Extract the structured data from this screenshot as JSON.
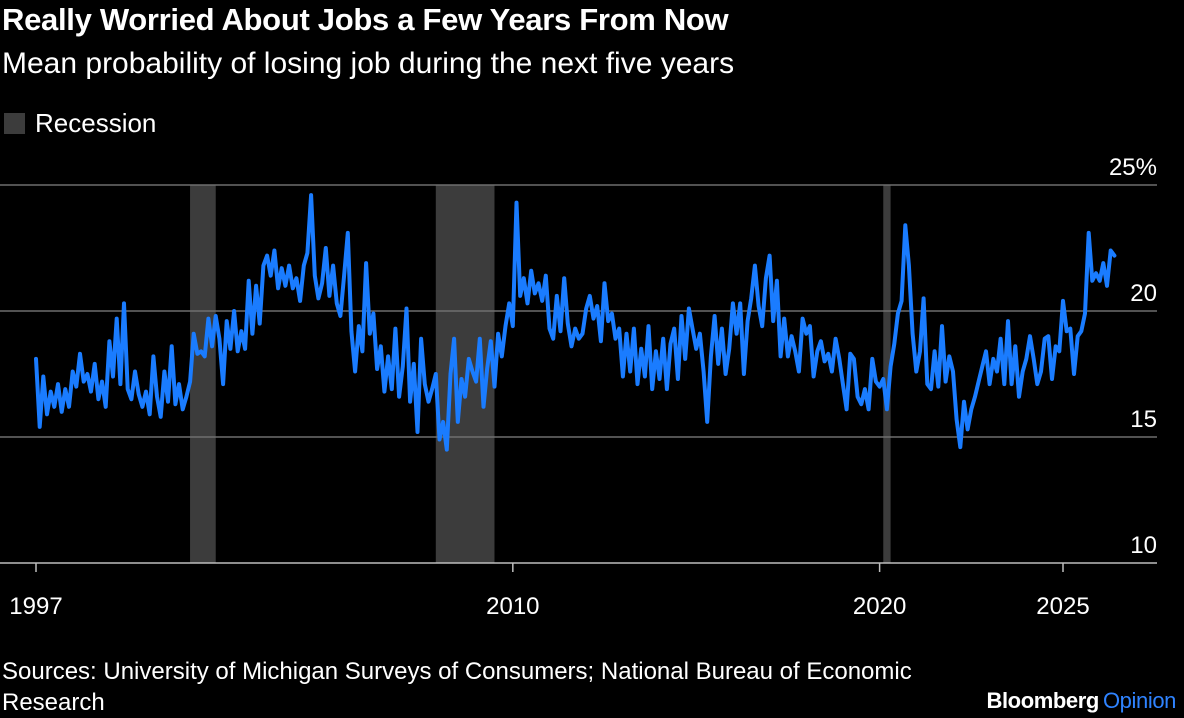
{
  "header": {
    "title": "Really Worried About Jobs a Few Years From Now",
    "subtitle": "Mean probability of losing job during the next five years"
  },
  "legend": {
    "recession_label": "Recession"
  },
  "footer": {
    "source": "Sources: University of Michigan Surveys of Consumers; National Bureau of Economic Research",
    "brand_main": "Bloomberg",
    "brand_sub": "Opinion"
  },
  "colors": {
    "background": "#000000",
    "line": "#1a7cff",
    "recession": "#3c3c3c",
    "gridline": "#6e6e6e",
    "text": "#ffffff",
    "brand_accent": "#2f83ff"
  },
  "chart_data": {
    "type": "line",
    "title": "Really Worried About Jobs a Few Years From Now",
    "subtitle": "Mean probability of losing job during the next five years",
    "xlabel": "",
    "ylabel": "",
    "xlim": [
      1997,
      2026.5
    ],
    "ylim": [
      10,
      25
    ],
    "x_ticks": [
      1997,
      2010,
      2020,
      2025
    ],
    "x_tick_labels": [
      "1997",
      "2010",
      "2020",
      "2025"
    ],
    "y_ticks": [
      10,
      15,
      20,
      25
    ],
    "y_tick_labels": [
      "10",
      "15",
      "20",
      "25%"
    ],
    "grid": "horizontal",
    "legend_position": "top-left",
    "recessions": [
      {
        "start": 2001.2,
        "end": 2001.9
      },
      {
        "start": 2007.9,
        "end": 2009.5
      },
      {
        "start": 2020.1,
        "end": 2020.3
      }
    ],
    "series": [
      {
        "values": [
          [
            1997.0,
            18.1
          ],
          [
            1997.1,
            15.4
          ],
          [
            1997.2,
            17.4
          ],
          [
            1997.3,
            15.9
          ],
          [
            1997.4,
            16.8
          ],
          [
            1997.5,
            16.2
          ],
          [
            1997.6,
            17.1
          ],
          [
            1997.7,
            16.0
          ],
          [
            1997.8,
            16.9
          ],
          [
            1997.9,
            16.2
          ],
          [
            1998.0,
            17.6
          ],
          [
            1998.1,
            17.0
          ],
          [
            1998.2,
            18.3
          ],
          [
            1998.3,
            17.2
          ],
          [
            1998.4,
            17.5
          ],
          [
            1998.5,
            16.8
          ],
          [
            1998.6,
            17.9
          ],
          [
            1998.7,
            16.5
          ],
          [
            1998.8,
            17.2
          ],
          [
            1998.9,
            16.2
          ],
          [
            1999.0,
            18.8
          ],
          [
            1999.1,
            17.4
          ],
          [
            1999.2,
            19.7
          ],
          [
            1999.3,
            17.1
          ],
          [
            1999.4,
            20.3
          ],
          [
            1999.5,
            16.9
          ],
          [
            1999.6,
            16.5
          ],
          [
            1999.7,
            17.6
          ],
          [
            1999.8,
            16.7
          ],
          [
            1999.9,
            16.2
          ],
          [
            2000.0,
            16.8
          ],
          [
            2000.1,
            15.9
          ],
          [
            2000.2,
            18.2
          ],
          [
            2000.3,
            16.6
          ],
          [
            2000.4,
            15.8
          ],
          [
            2000.5,
            17.6
          ],
          [
            2000.6,
            16.4
          ],
          [
            2000.7,
            18.6
          ],
          [
            2000.8,
            16.3
          ],
          [
            2000.9,
            17.1
          ],
          [
            2001.0,
            16.1
          ],
          [
            2001.1,
            16.6
          ],
          [
            2001.2,
            17.2
          ],
          [
            2001.3,
            19.1
          ],
          [
            2001.4,
            18.3
          ],
          [
            2001.5,
            18.4
          ],
          [
            2001.6,
            18.2
          ],
          [
            2001.7,
            19.7
          ],
          [
            2001.8,
            18.6
          ],
          [
            2001.9,
            19.8
          ],
          [
            2002.0,
            18.9
          ],
          [
            2002.1,
            17.1
          ],
          [
            2002.2,
            19.6
          ],
          [
            2002.3,
            18.5
          ],
          [
            2002.4,
            20.0
          ],
          [
            2002.5,
            18.4
          ],
          [
            2002.6,
            19.2
          ],
          [
            2002.7,
            18.5
          ],
          [
            2002.8,
            21.2
          ],
          [
            2002.9,
            19.1
          ],
          [
            2003.0,
            21.0
          ],
          [
            2003.1,
            19.5
          ],
          [
            2003.2,
            21.8
          ],
          [
            2003.3,
            22.2
          ],
          [
            2003.4,
            21.4
          ],
          [
            2003.5,
            22.4
          ],
          [
            2003.6,
            20.9
          ],
          [
            2003.7,
            21.7
          ],
          [
            2003.8,
            21.0
          ],
          [
            2003.9,
            21.8
          ],
          [
            2004.0,
            20.9
          ],
          [
            2004.1,
            21.3
          ],
          [
            2004.2,
            20.4
          ],
          [
            2004.3,
            21.8
          ],
          [
            2004.4,
            22.3
          ],
          [
            2004.5,
            24.6
          ],
          [
            2004.6,
            21.4
          ],
          [
            2004.7,
            20.5
          ],
          [
            2004.8,
            21.1
          ],
          [
            2004.9,
            22.5
          ],
          [
            2005.0,
            20.6
          ],
          [
            2005.1,
            21.8
          ],
          [
            2005.2,
            20.3
          ],
          [
            2005.3,
            19.8
          ],
          [
            2005.4,
            21.4
          ],
          [
            2005.5,
            23.1
          ],
          [
            2005.6,
            19.2
          ],
          [
            2005.7,
            17.6
          ],
          [
            2005.8,
            19.4
          ],
          [
            2005.9,
            18.4
          ],
          [
            2006.0,
            21.9
          ],
          [
            2006.1,
            19.1
          ],
          [
            2006.2,
            19.9
          ],
          [
            2006.3,
            17.7
          ],
          [
            2006.4,
            18.6
          ],
          [
            2006.5,
            16.8
          ],
          [
            2006.6,
            18.2
          ],
          [
            2006.7,
            16.9
          ],
          [
            2006.8,
            19.3
          ],
          [
            2006.9,
            16.6
          ],
          [
            2007.0,
            17.8
          ],
          [
            2007.1,
            20.1
          ],
          [
            2007.2,
            16.4
          ],
          [
            2007.3,
            17.9
          ],
          [
            2007.4,
            15.2
          ],
          [
            2007.5,
            18.9
          ],
          [
            2007.6,
            17.1
          ],
          [
            2007.7,
            16.4
          ],
          [
            2007.8,
            16.9
          ],
          [
            2007.9,
            17.5
          ],
          [
            2008.0,
            14.9
          ],
          [
            2008.1,
            15.6
          ],
          [
            2008.2,
            14.5
          ],
          [
            2008.3,
            17.5
          ],
          [
            2008.4,
            18.9
          ],
          [
            2008.5,
            15.6
          ],
          [
            2008.6,
            17.3
          ],
          [
            2008.7,
            16.6
          ],
          [
            2008.8,
            18.1
          ],
          [
            2008.9,
            17.6
          ],
          [
            2009.0,
            17.2
          ],
          [
            2009.1,
            18.9
          ],
          [
            2009.2,
            16.2
          ],
          [
            2009.3,
            17.7
          ],
          [
            2009.4,
            18.8
          ],
          [
            2009.5,
            17.0
          ],
          [
            2009.6,
            19.1
          ],
          [
            2009.7,
            18.2
          ],
          [
            2009.8,
            19.4
          ],
          [
            2009.9,
            20.3
          ],
          [
            2010.0,
            19.4
          ],
          [
            2010.1,
            24.3
          ],
          [
            2010.2,
            20.6
          ],
          [
            2010.3,
            21.3
          ],
          [
            2010.4,
            20.3
          ],
          [
            2010.5,
            21.6
          ],
          [
            2010.6,
            20.7
          ],
          [
            2010.7,
            21.1
          ],
          [
            2010.8,
            20.4
          ],
          [
            2010.9,
            21.4
          ],
          [
            2011.0,
            19.3
          ],
          [
            2011.1,
            18.9
          ],
          [
            2011.2,
            20.6
          ],
          [
            2011.3,
            19.2
          ],
          [
            2011.4,
            21.3
          ],
          [
            2011.5,
            19.5
          ],
          [
            2011.6,
            18.6
          ],
          [
            2011.7,
            19.3
          ],
          [
            2011.8,
            18.9
          ],
          [
            2011.9,
            19.1
          ],
          [
            2012.0,
            20.1
          ],
          [
            2012.1,
            20.6
          ],
          [
            2012.2,
            19.7
          ],
          [
            2012.3,
            20.2
          ],
          [
            2012.4,
            18.8
          ],
          [
            2012.5,
            21.1
          ],
          [
            2012.6,
            19.6
          ],
          [
            2012.7,
            19.9
          ],
          [
            2012.8,
            18.9
          ],
          [
            2012.9,
            19.3
          ],
          [
            2013.0,
            17.4
          ],
          [
            2013.1,
            19.1
          ],
          [
            2013.2,
            17.6
          ],
          [
            2013.3,
            19.3
          ],
          [
            2013.4,
            17.1
          ],
          [
            2013.5,
            18.5
          ],
          [
            2013.6,
            17.4
          ],
          [
            2013.7,
            19.4
          ],
          [
            2013.8,
            16.9
          ],
          [
            2013.9,
            18.4
          ],
          [
            2014.0,
            17.3
          ],
          [
            2014.1,
            18.9
          ],
          [
            2014.2,
            16.9
          ],
          [
            2014.3,
            18.7
          ],
          [
            2014.4,
            19.3
          ],
          [
            2014.5,
            17.3
          ],
          [
            2014.6,
            19.8
          ],
          [
            2014.7,
            18.1
          ],
          [
            2014.8,
            20.1
          ],
          [
            2014.9,
            19.3
          ],
          [
            2015.0,
            18.5
          ],
          [
            2015.1,
            19.1
          ],
          [
            2015.2,
            17.6
          ],
          [
            2015.3,
            15.6
          ],
          [
            2015.4,
            18.2
          ],
          [
            2015.5,
            19.8
          ],
          [
            2015.6,
            17.9
          ],
          [
            2015.7,
            19.3
          ],
          [
            2015.8,
            17.5
          ],
          [
            2015.9,
            18.5
          ],
          [
            2016.0,
            20.3
          ],
          [
            2016.1,
            19.1
          ],
          [
            2016.2,
            20.3
          ],
          [
            2016.3,
            17.5
          ],
          [
            2016.4,
            19.6
          ],
          [
            2016.5,
            20.5
          ],
          [
            2016.6,
            21.8
          ],
          [
            2016.7,
            20.2
          ],
          [
            2016.8,
            19.4
          ],
          [
            2016.9,
            21.3
          ],
          [
            2017.0,
            22.2
          ],
          [
            2017.1,
            19.6
          ],
          [
            2017.2,
            21.2
          ],
          [
            2017.3,
            18.2
          ],
          [
            2017.4,
            19.7
          ],
          [
            2017.5,
            18.2
          ],
          [
            2017.6,
            19.0
          ],
          [
            2017.7,
            18.4
          ],
          [
            2017.8,
            17.6
          ],
          [
            2017.9,
            19.7
          ],
          [
            2018.0,
            19.1
          ],
          [
            2018.1,
            19.4
          ],
          [
            2018.2,
            17.4
          ],
          [
            2018.3,
            18.4
          ],
          [
            2018.4,
            18.8
          ],
          [
            2018.5,
            18.0
          ],
          [
            2018.6,
            18.3
          ],
          [
            2018.7,
            17.6
          ],
          [
            2018.8,
            18.9
          ],
          [
            2018.9,
            18.1
          ],
          [
            2019.0,
            17.1
          ],
          [
            2019.1,
            16.1
          ],
          [
            2019.2,
            18.3
          ],
          [
            2019.3,
            18.1
          ],
          [
            2019.4,
            16.6
          ],
          [
            2019.5,
            16.3
          ],
          [
            2019.6,
            16.9
          ],
          [
            2019.7,
            16.1
          ],
          [
            2019.8,
            18.1
          ],
          [
            2019.9,
            17.2
          ],
          [
            2020.0,
            17.0
          ],
          [
            2020.1,
            17.3
          ],
          [
            2020.2,
            16.1
          ],
          [
            2020.3,
            17.8
          ],
          [
            2020.4,
            18.7
          ],
          [
            2020.5,
            19.9
          ],
          [
            2020.6,
            20.4
          ],
          [
            2020.7,
            23.4
          ],
          [
            2020.8,
            21.8
          ],
          [
            2020.9,
            19.1
          ],
          [
            2021.0,
            17.6
          ],
          [
            2021.1,
            18.4
          ],
          [
            2021.2,
            20.5
          ],
          [
            2021.3,
            17.1
          ],
          [
            2021.4,
            16.9
          ],
          [
            2021.5,
            18.4
          ],
          [
            2021.6,
            17.0
          ],
          [
            2021.7,
            19.4
          ],
          [
            2021.8,
            17.2
          ],
          [
            2021.9,
            18.2
          ],
          [
            2022.0,
            17.6
          ],
          [
            2022.1,
            15.7
          ],
          [
            2022.2,
            14.6
          ],
          [
            2022.3,
            16.4
          ],
          [
            2022.4,
            15.3
          ],
          [
            2022.5,
            16.1
          ],
          [
            2022.6,
            16.6
          ],
          [
            2022.7,
            17.2
          ],
          [
            2022.8,
            17.8
          ],
          [
            2022.9,
            18.4
          ],
          [
            2023.0,
            17.1
          ],
          [
            2023.1,
            18.1
          ],
          [
            2023.2,
            17.6
          ],
          [
            2023.3,
            18.9
          ],
          [
            2023.4,
            17.1
          ],
          [
            2023.5,
            19.6
          ],
          [
            2023.6,
            17.1
          ],
          [
            2023.7,
            18.6
          ],
          [
            2023.8,
            16.6
          ],
          [
            2023.9,
            17.6
          ],
          [
            2024.0,
            18.1
          ],
          [
            2024.1,
            19.0
          ],
          [
            2024.2,
            18.1
          ],
          [
            2024.3,
            17.1
          ],
          [
            2024.4,
            17.6
          ],
          [
            2024.5,
            18.9
          ],
          [
            2024.6,
            19.0
          ],
          [
            2024.7,
            17.3
          ],
          [
            2024.8,
            18.6
          ],
          [
            2024.9,
            18.4
          ],
          [
            2025.0,
            20.4
          ],
          [
            2025.1,
            19.2
          ],
          [
            2025.2,
            19.3
          ],
          [
            2025.3,
            17.5
          ],
          [
            2025.4,
            19.0
          ],
          [
            2025.5,
            19.2
          ],
          [
            2025.6,
            19.9
          ],
          [
            2025.7,
            23.1
          ],
          [
            2025.8,
            21.2
          ],
          [
            2025.9,
            21.5
          ],
          [
            2026.0,
            21.2
          ],
          [
            2026.1,
            21.9
          ],
          [
            2026.2,
            21.0
          ],
          [
            2026.3,
            22.4
          ],
          [
            2026.4,
            22.2
          ]
        ]
      }
    ]
  }
}
